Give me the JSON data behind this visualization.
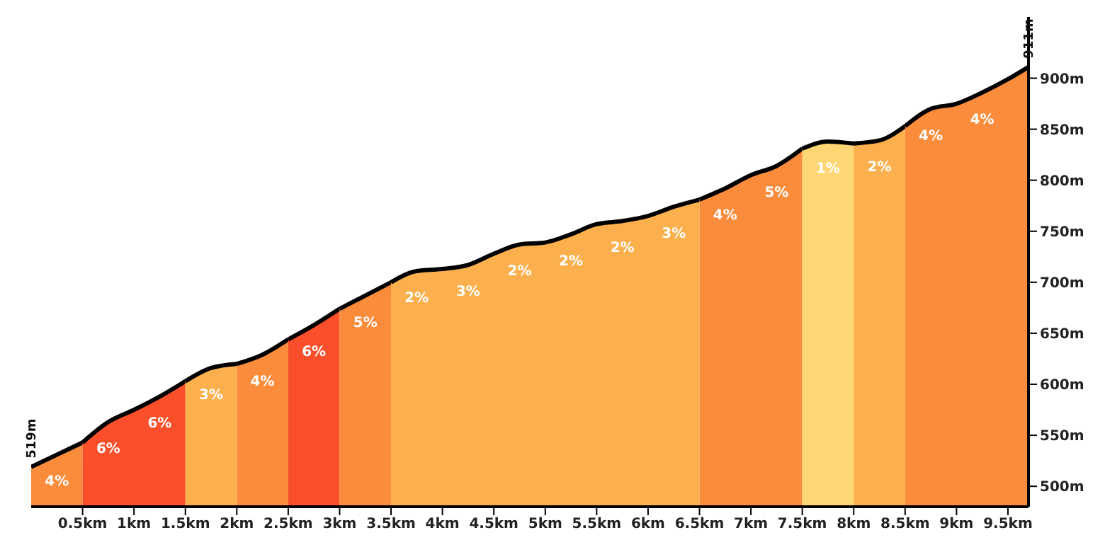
{
  "chart_data": {
    "type": "area",
    "xlim": [
      0,
      9.7
    ],
    "xticks": [
      {
        "value": 0.5,
        "label": "0.5km"
      },
      {
        "value": 1,
        "label": "1km"
      },
      {
        "value": 1.5,
        "label": "1.5km"
      },
      {
        "value": 2,
        "label": "2km"
      },
      {
        "value": 2.5,
        "label": "2.5km"
      },
      {
        "value": 3,
        "label": "3km"
      },
      {
        "value": 3.5,
        "label": "3.5km"
      },
      {
        "value": 4,
        "label": "4km"
      },
      {
        "value": 4.5,
        "label": "4.5km"
      },
      {
        "value": 5,
        "label": "5km"
      },
      {
        "value": 5.5,
        "label": "5.5km"
      },
      {
        "value": 6,
        "label": "6km"
      },
      {
        "value": 6.5,
        "label": "6.5km"
      },
      {
        "value": 7,
        "label": "7km"
      },
      {
        "value": 7.5,
        "label": "7.5km"
      },
      {
        "value": 8,
        "label": "8km"
      },
      {
        "value": 8.5,
        "label": "8.5km"
      },
      {
        "value": 9,
        "label": "9km"
      },
      {
        "value": 9.5,
        "label": "9.5km"
      }
    ],
    "ylim": [
      480,
      960
    ],
    "yticks": [
      {
        "value": 500,
        "label": "500m"
      },
      {
        "value": 550,
        "label": "550m"
      },
      {
        "value": 600,
        "label": "600m"
      },
      {
        "value": 650,
        "label": "650m"
      },
      {
        "value": 700,
        "label": "700m"
      },
      {
        "value": 750,
        "label": "750m"
      },
      {
        "value": 800,
        "label": "800m"
      },
      {
        "value": 850,
        "label": "850m"
      },
      {
        "value": 900,
        "label": "900m"
      }
    ],
    "grid": false,
    "legend": false,
    "series": [
      {
        "color": "#fb8c3c",
        "x": [
          0,
          0.5
        ],
        "values": [
          519,
          543
        ]
      },
      {
        "color": "#fa4f2a",
        "x": [
          0.5,
          0.75,
          1,
          1.25,
          1.5
        ],
        "values": [
          543,
          563,
          575,
          588,
          603
        ]
      },
      {
        "color": "#fbb04d",
        "x": [
          1.5,
          1.75,
          2
        ],
        "values": [
          603,
          616,
          620
        ]
      },
      {
        "color": "#fb8c3c",
        "x": [
          2,
          2.25,
          2.5
        ],
        "values": [
          620,
          629,
          644
        ]
      },
      {
        "color": "#fa4f2a",
        "x": [
          2.5,
          2.75,
          3
        ],
        "values": [
          644,
          658,
          674
        ]
      },
      {
        "color": "#fb8c3c",
        "x": [
          3,
          3.25,
          3.5
        ],
        "values": [
          674,
          687,
          700
        ]
      },
      {
        "color": "#fbb04d",
        "x": [
          3.5,
          3.75,
          4,
          4.25,
          4.5,
          4.75,
          5,
          5.25,
          5.5,
          5.75,
          6,
          6.25,
          6.5
        ],
        "values": [
          700,
          711,
          713,
          717,
          728,
          737,
          739,
          747,
          757,
          760,
          765,
          774,
          781
        ]
      },
      {
        "color": "#fb8c3c",
        "x": [
          6.5,
          6.75,
          7,
          7.25,
          7.5
        ],
        "values": [
          781,
          792,
          805,
          814,
          831
        ]
      },
      {
        "color": "#fed673",
        "x": [
          7.5,
          7.75,
          8
        ],
        "values": [
          831,
          838,
          836
        ]
      },
      {
        "color": "#fbb04d",
        "x": [
          8,
          8.25,
          8.5
        ],
        "values": [
          836,
          839,
          853
        ]
      },
      {
        "color": "#fb8c3c",
        "x": [
          8.5,
          8.75,
          9,
          9.25,
          9.5,
          9.7
        ],
        "values": [
          853,
          870,
          875,
          886,
          899,
          911
        ]
      }
    ],
    "annotations": [
      {
        "text": "519m",
        "x": 0,
        "y": 519
      },
      {
        "text": "911m",
        "x": 9.7,
        "y": 911
      },
      {
        "text": "4%",
        "x": 0.25,
        "y": 531
      },
      {
        "text": "6%",
        "x": 0.75,
        "y": 563
      },
      {
        "text": "6%",
        "x": 1.25,
        "y": 588
      },
      {
        "text": "3%",
        "x": 1.75,
        "y": 616
      },
      {
        "text": "4%",
        "x": 2.25,
        "y": 629
      },
      {
        "text": "6%",
        "x": 2.75,
        "y": 658
      },
      {
        "text": "5%",
        "x": 3.25,
        "y": 687
      },
      {
        "text": "2%",
        "x": 3.75,
        "y": 711
      },
      {
        "text": "3%",
        "x": 4.25,
        "y": 717
      },
      {
        "text": "2%",
        "x": 4.75,
        "y": 737
      },
      {
        "text": "2%",
        "x": 5.25,
        "y": 747
      },
      {
        "text": "2%",
        "x": 5.75,
        "y": 760
      },
      {
        "text": "3%",
        "x": 6.25,
        "y": 774
      },
      {
        "text": "4%",
        "x": 6.75,
        "y": 792
      },
      {
        "text": "5%",
        "x": 7.25,
        "y": 814
      },
      {
        "text": "1%",
        "x": 7.75,
        "y": 838
      },
      {
        "text": "2%",
        "x": 8.25,
        "y": 839
      },
      {
        "text": "4%",
        "x": 8.75,
        "y": 870
      },
      {
        "text": "4%",
        "x": 9.25,
        "y": 886
      }
    ]
  }
}
